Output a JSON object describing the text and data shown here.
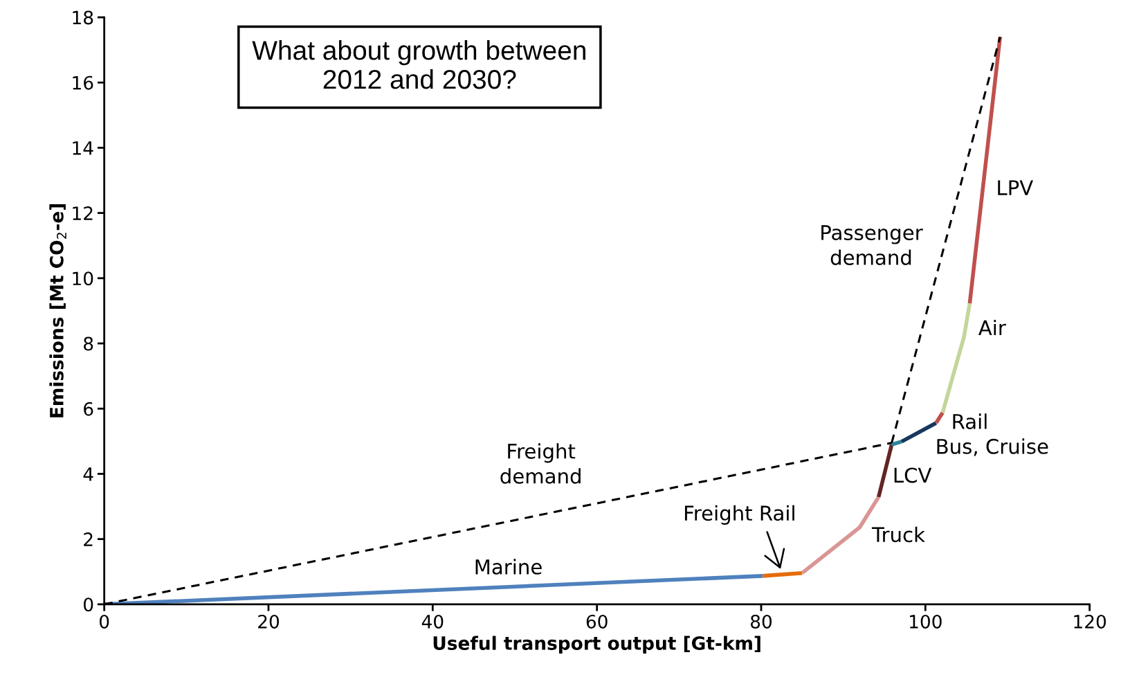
{
  "chart_data": {
    "type": "line",
    "title": "What about growth between\n2012 and 2030?",
    "xlabel": "Useful transport output [Gt-km]",
    "ylabel": "Emissions [Mt CO$_{2}$-e]",
    "xlim": [
      0,
      120
    ],
    "ylim": [
      0,
      18
    ],
    "xticks": [
      0,
      20,
      40,
      60,
      80,
      100,
      120
    ],
    "yticks": [
      0,
      2,
      4,
      6,
      8,
      10,
      12,
      14,
      16,
      18
    ],
    "grid": false,
    "legend": false,
    "marker": "none",
    "series": [
      {
        "name": "Marine",
        "color": "#4f81bd",
        "x": [
          0,
          80.2
        ],
        "values": [
          0,
          0.87
        ]
      },
      {
        "name": "Freight Rail",
        "color": "#e46c0a",
        "x": [
          80.2,
          85.0
        ],
        "values": [
          0.87,
          0.96
        ]
      },
      {
        "name": "Truck",
        "color": "#d99694",
        "x": [
          85.0,
          92.0,
          94.3
        ],
        "values": [
          0.96,
          2.36,
          3.29
        ]
      },
      {
        "name": "LCV",
        "color": "#632523",
        "x": [
          94.3,
          95.9
        ],
        "values": [
          3.29,
          4.9
        ]
      },
      {
        "color": "#31849b",
        "x": [
          95.9,
          97.1
        ],
        "values": [
          4.9,
          4.99
        ]
      },
      {
        "name": "Bus, Cruise",
        "color": "#17375e",
        "x": [
          97.1,
          101.3
        ],
        "values": [
          4.99,
          5.56
        ]
      },
      {
        "name": "Rail",
        "color": "#c0504d",
        "x": [
          101.3,
          102.1
        ],
        "values": [
          5.56,
          5.88
        ]
      },
      {
        "name": "Air",
        "color": "#c3d69b",
        "x": [
          102.1,
          104.7,
          105.4
        ],
        "values": [
          5.88,
          8.2,
          9.23
        ]
      },
      {
        "name": "LPV",
        "color": "#c0504d",
        "x": [
          105.4,
          109.1
        ],
        "values": [
          9.23,
          17.4
        ]
      },
      {
        "name": "Freight\ndemand",
        "color": "#000000",
        "line_style": "dashed",
        "x": [
          0,
          95.9
        ],
        "values": [
          0,
          4.95
        ]
      },
      {
        "name": "Passenger\ndemand",
        "color": "#000000",
        "line_style": "dashed",
        "x": [
          95.9,
          109.1
        ],
        "values": [
          4.95,
          17.4
        ]
      }
    ]
  }
}
